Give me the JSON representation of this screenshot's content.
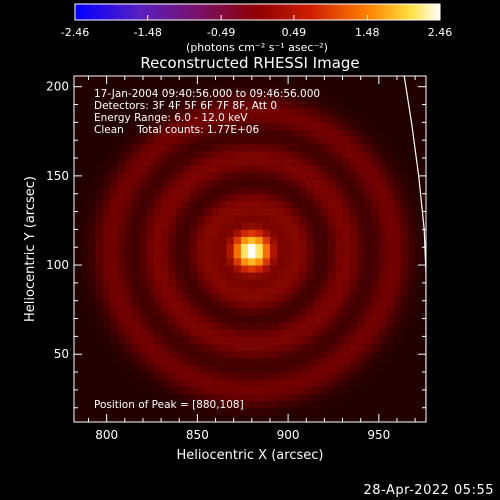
{
  "chart_data": {
    "type": "heatmap",
    "title": "Reconstructed RHESSI Image",
    "xlabel": "Heliocentric X (arcsec)",
    "ylabel": "Heliocentric Y (arcsec)",
    "xlim": [
      782,
      976
    ],
    "ylim": [
      12,
      206
    ],
    "x_ticks": [
      800,
      850,
      900,
      950
    ],
    "y_ticks": [
      50,
      100,
      150,
      200
    ],
    "colorbar": {
      "ticks": [
        "-2.46",
        "-1.48",
        "-0.49",
        "0.49",
        "1.48",
        "2.46"
      ],
      "range": [
        -2.46,
        2.46
      ],
      "unit_label": "(photons cm⁻² s⁻¹ asec⁻²)"
    },
    "source": {
      "peak": [
        880,
        108
      ],
      "sigma_arcsec": 7,
      "ring_radii_arcsec": [
        25,
        52,
        78
      ],
      "ring_levels": [
        0.16,
        0.14,
        0.12
      ]
    },
    "limb_curve": [
      [
        964,
        206
      ],
      [
        968,
        180
      ],
      [
        972,
        150
      ],
      [
        975,
        120
      ],
      [
        976,
        95
      ],
      [
        976,
        60
      ],
      [
        976,
        20
      ]
    ],
    "annotations": {
      "line1": "17-Jan-2004 09:40:56.000 to 09:46:56.000",
      "line2": "Detectors: 3F 4F 5F 6F 7F 8F, Att 0",
      "line3": "Energy Range: 6.0 - 12.0 keV",
      "line4": "Clean    Total counts: 1.77E+06",
      "peak_label": "Position of Peak = [880,108]"
    }
  },
  "footer": {
    "timestamp": "28-Apr-2022 05:55"
  }
}
